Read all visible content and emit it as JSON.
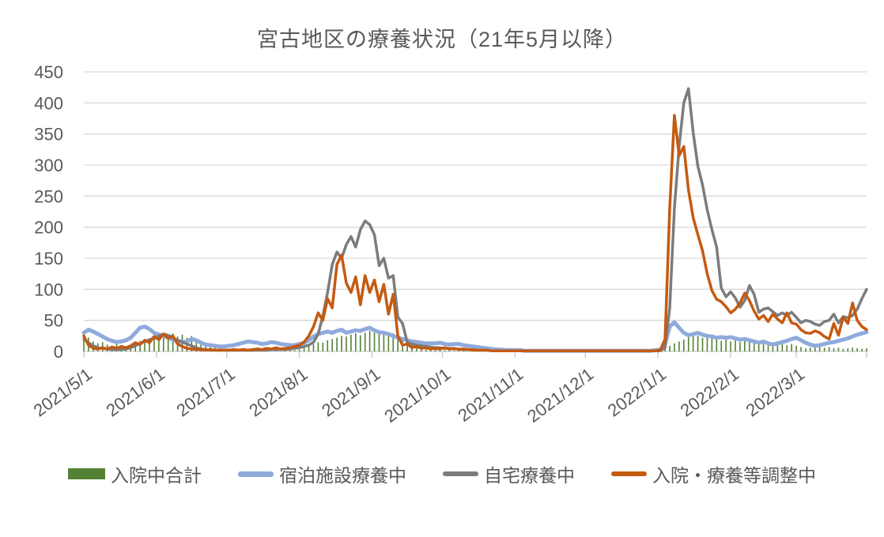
{
  "title": "宮古地区の療養状況（21年5月以降）",
  "chart_data": {
    "type": "combo (bar + line)",
    "title": "宮古地区の療養状況（21年5月以降）",
    "ylim": [
      0,
      450
    ],
    "y_ticks": [
      "0",
      "50",
      "100",
      "150",
      "200",
      "250",
      "300",
      "350",
      "400",
      "450"
    ],
    "grid": "horizontal",
    "legend_position": "bottom",
    "x_axis_note": "daily dates, monthly tick labels, values sampled every 2 days",
    "x_ticks": [
      {
        "label": "2021/5/1",
        "day": 0
      },
      {
        "label": "2021/6/1",
        "day": 31
      },
      {
        "label": "2021/7/1",
        "day": 61
      },
      {
        "label": "2021/8/1",
        "day": 92
      },
      {
        "label": "2021/9/1",
        "day": 123
      },
      {
        "label": "2021/10/1",
        "day": 153
      },
      {
        "label": "2021/11/1",
        "day": 184
      },
      {
        "label": "2021/12/1",
        "day": 214
      },
      {
        "label": "2022/1/1",
        "day": 245
      },
      {
        "label": "2022/2/1",
        "day": 276
      },
      {
        "label": "2022/3/1",
        "day": 304
      }
    ],
    "total_days": 334,
    "sample_step_days": 2,
    "colors": {
      "axis_text": "#595959",
      "gridline": "#d9d9d9",
      "tick": "#c9c9c9"
    },
    "series": [
      {
        "name": "入院中合計",
        "type": "bar",
        "color": "#548235",
        "values": [
          18,
          22,
          16,
          13,
          15,
          11,
          9,
          12,
          10,
          8,
          11,
          14,
          17,
          15,
          19,
          22,
          25,
          28,
          26,
          29,
          24,
          27,
          22,
          25,
          20,
          17,
          14,
          11,
          8,
          6,
          4,
          3,
          2,
          1,
          0,
          0,
          1,
          0,
          1,
          0,
          0,
          1,
          0,
          1,
          2,
          2,
          3,
          6,
          9,
          12,
          15,
          14,
          18,
          20,
          22,
          25,
          24,
          27,
          29,
          26,
          30,
          33,
          30,
          32,
          28,
          26,
          29,
          24,
          21,
          18,
          15,
          12,
          9,
          7,
          5,
          4,
          3,
          2,
          2,
          1,
          1,
          1,
          0,
          0,
          0,
          0,
          0,
          0,
          0,
          0,
          0,
          0,
          0,
          0,
          0,
          0,
          0,
          0,
          0,
          0,
          0,
          0,
          0,
          0,
          0,
          0,
          0,
          0,
          0,
          0,
          0,
          0,
          0,
          0,
          0,
          0,
          0,
          0,
          0,
          0,
          0,
          0,
          0,
          1,
          4,
          9,
          13,
          16,
          19,
          23,
          27,
          25,
          22,
          25,
          21,
          19,
          17,
          19,
          16,
          18,
          15,
          17,
          19,
          16,
          13,
          15,
          12,
          14,
          11,
          13,
          10,
          12,
          9,
          7,
          5,
          6,
          8,
          7,
          6,
          7,
          5,
          6,
          4,
          5,
          6,
          5,
          4,
          5
        ]
      },
      {
        "name": "宿泊施設療養中",
        "type": "line",
        "color": "#8faadc",
        "stroke_width": 5,
        "values": [
          30,
          35,
          32,
          28,
          24,
          20,
          17,
          15,
          16,
          18,
          22,
          30,
          38,
          40,
          36,
          30,
          27,
          25,
          22,
          19,
          17,
          15,
          16,
          20,
          18,
          14,
          11,
          10,
          9,
          8,
          8,
          9,
          10,
          12,
          14,
          16,
          15,
          14,
          12,
          13,
          15,
          14,
          12,
          11,
          10,
          10,
          12,
          14,
          18,
          24,
          28,
          30,
          32,
          30,
          33,
          35,
          30,
          32,
          34,
          33,
          36,
          38,
          34,
          31,
          30,
          28,
          25,
          22,
          20,
          18,
          16,
          15,
          14,
          13,
          13,
          13,
          14,
          12,
          11,
          12,
          12,
          10,
          9,
          8,
          7,
          6,
          5,
          4,
          3,
          3,
          2,
          2,
          2,
          2,
          1,
          1,
          1,
          1,
          1,
          1,
          1,
          1,
          1,
          1,
          1,
          1,
          1,
          1,
          1,
          1,
          1,
          1,
          1,
          1,
          1,
          1,
          1,
          1,
          1,
          1,
          1,
          1,
          2,
          3,
          12,
          40,
          47,
          38,
          30,
          26,
          28,
          30,
          27,
          25,
          24,
          22,
          23,
          22,
          23,
          21,
          19,
          20,
          18,
          16,
          14,
          16,
          13,
          11,
          13,
          15,
          17,
          20,
          22,
          18,
          14,
          11,
          9,
          10,
          12,
          14,
          15,
          17,
          19,
          21,
          24,
          27,
          29,
          31
        ]
      },
      {
        "name": "自宅療養中",
        "type": "line",
        "color": "#7c7c7c",
        "stroke_width": 3.5,
        "values": [
          20,
          14,
          9,
          6,
          5,
          4,
          3,
          3,
          3,
          4,
          6,
          9,
          13,
          16,
          19,
          21,
          25,
          28,
          26,
          22,
          18,
          15,
          12,
          9,
          6,
          4,
          3,
          2,
          2,
          2,
          2,
          2,
          2,
          2,
          2,
          2,
          2,
          2,
          2,
          2,
          3,
          3,
          3,
          3,
          4,
          5,
          6,
          8,
          10,
          15,
          28,
          57,
          95,
          140,
          160,
          150,
          172,
          185,
          168,
          196,
          210,
          204,
          188,
          138,
          150,
          118,
          122,
          55,
          45,
          15,
          12,
          10,
          9,
          8,
          7,
          6,
          6,
          5,
          5,
          4,
          4,
          3,
          3,
          3,
          2,
          2,
          2,
          1,
          1,
          1,
          1,
          1,
          1,
          1,
          1,
          1,
          1,
          1,
          1,
          1,
          1,
          1,
          1,
          1,
          1,
          1,
          1,
          1,
          1,
          1,
          1,
          1,
          1,
          1,
          1,
          1,
          1,
          1,
          1,
          1,
          1,
          1,
          1,
          1,
          6,
          70,
          230,
          330,
          400,
          423,
          352,
          298,
          268,
          228,
          196,
          168,
          102,
          88,
          96,
          86,
          71,
          82,
          106,
          92,
          63,
          68,
          70,
          64,
          58,
          62,
          58,
          63,
          55,
          46,
          50,
          48,
          44,
          42,
          48,
          50,
          60,
          46,
          56,
          54,
          58,
          68,
          85,
          100
        ]
      },
      {
        "name": "入院・療養等調整中",
        "type": "line",
        "color": "#c55a11",
        "stroke_width": 3.5,
        "values": [
          25,
          10,
          5,
          4,
          6,
          4,
          7,
          5,
          8,
          6,
          9,
          14,
          11,
          18,
          14,
          24,
          19,
          28,
          21,
          25,
          12,
          8,
          5,
          4,
          3,
          3,
          2,
          3,
          2,
          2,
          2,
          2,
          3,
          2,
          3,
          2,
          3,
          4,
          3,
          5,
          4,
          6,
          4,
          5,
          6,
          8,
          10,
          15,
          25,
          40,
          62,
          50,
          85,
          70,
          140,
          155,
          110,
          95,
          120,
          75,
          122,
          95,
          115,
          80,
          108,
          60,
          92,
          25,
          10,
          12,
          6,
          8,
          5,
          6,
          4,
          5,
          4,
          6,
          4,
          5,
          3,
          4,
          3,
          2,
          2,
          2,
          2,
          1,
          1,
          1,
          1,
          1,
          1,
          1,
          1,
          1,
          1,
          1,
          1,
          1,
          1,
          1,
          1,
          1,
          1,
          1,
          1,
          1,
          1,
          1,
          1,
          1,
          1,
          1,
          1,
          1,
          1,
          1,
          1,
          1,
          1,
          1,
          1,
          2,
          20,
          230,
          380,
          315,
          330,
          260,
          215,
          188,
          162,
          125,
          98,
          84,
          80,
          72,
          62,
          68,
          78,
          94,
          82,
          65,
          52,
          58,
          48,
          60,
          52,
          46,
          62,
          46,
          44,
          35,
          30,
          29,
          33,
          30,
          24,
          20,
          45,
          26,
          55,
          45,
          78,
          50,
          40,
          35
        ]
      }
    ]
  },
  "legend": {
    "item1": "入院中合計",
    "item2": "宿泊施設療養中",
    "item3": "自宅療養中",
    "item4": "入院・療養等調整中"
  }
}
